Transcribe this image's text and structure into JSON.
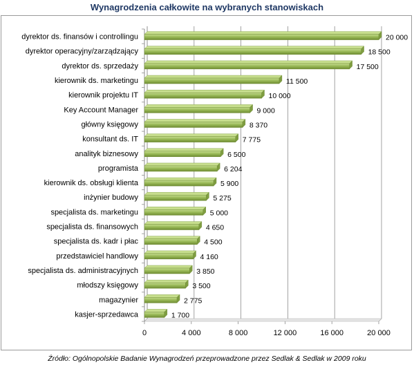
{
  "chart_data": {
    "type": "bar",
    "orientation": "horizontal",
    "title": "Wynagrodzenia całkowite na wybranych stanowiskach",
    "categories": [
      "dyrektor ds. finansów i controllingu",
      "dyrektor operacyjny/zarządzający",
      "dyrektor ds. sprzedaży",
      "kierownik ds. marketingu",
      "kierownik projektu IT",
      "Key Account Manager",
      "główny księgowy",
      "konsultant ds. IT",
      "analityk biznesowy",
      "programista",
      "kierownik ds. obsługi klienta",
      "inżynier budowy",
      "specjalista ds. marketingu",
      "specjalista ds. finansowych",
      "specjalista ds. kadr i płac",
      "przedstawiciel handlowy",
      "specjalista ds. administracyjnych",
      "młodszy księgowy",
      "magazynier",
      "kasjer-sprzedawca"
    ],
    "values": [
      20000,
      18500,
      17500,
      11500,
      10000,
      9000,
      8370,
      7775,
      6500,
      6204,
      5900,
      5275,
      5000,
      4650,
      4500,
      4160,
      3850,
      3500,
      2775,
      1700
    ],
    "value_labels": [
      "20 000",
      "18 500",
      "17 500",
      "11 500",
      "10 000",
      "9 000",
      "8 370",
      "7 775",
      "6 500",
      "6 204",
      "5 900",
      "5 275",
      "5 000",
      "4 650",
      "4 500",
      "4 160",
      "3 850",
      "3 500",
      "2 775",
      "1 700"
    ],
    "xlim": [
      0,
      20000
    ],
    "xticks": [
      0,
      4000,
      8000,
      12000,
      16000,
      20000
    ],
    "xtick_labels": [
      "0",
      "4 000",
      "8 000",
      "12 000",
      "16 000",
      "20 000"
    ],
    "grid": "vertical",
    "bar_color": "#9bbb59",
    "xlabel": "",
    "ylabel": ""
  },
  "source_note": "Źródło: Ogólnopolskie Badanie Wynagrodzeń przeprowadzone przez Sedlak & Sedlak w 2009 roku"
}
